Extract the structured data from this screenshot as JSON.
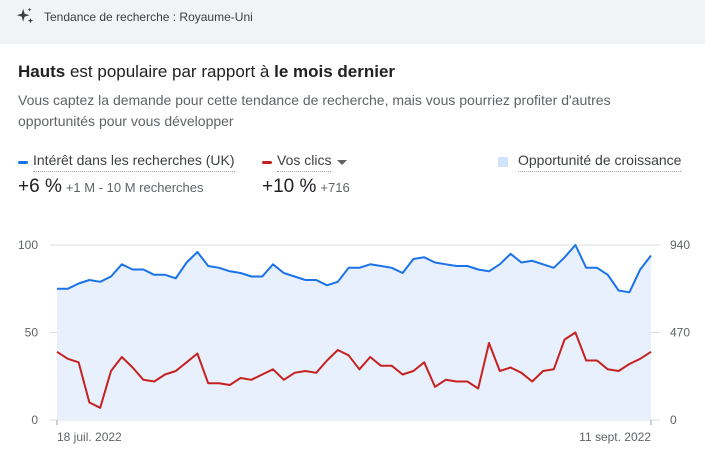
{
  "header": {
    "title": "Tendance de recherche : Royaume-Uni",
    "icon": "sparkle-icon"
  },
  "headline": {
    "subject": "Hauts",
    "middle": " est populaire par rapport à ",
    "period": "le mois dernier"
  },
  "description": "Vous captez la demande pour cette tendance de recherche, mais vous pourriez profiter d'autres opportunités pour vous développer",
  "legend": {
    "interest": {
      "label": "Intérêt dans les recherches (UK)",
      "color": "#1a73e8",
      "value": "+6 %",
      "detail": "+1 M - 10 M recherches"
    },
    "clicks": {
      "label": "Vos clics",
      "color": "#c5221f",
      "value": "+10 %",
      "detail": "+716"
    },
    "opportunity": {
      "label": "Opportunité de croissance",
      "color": "#d2e3fc"
    }
  },
  "chart_data": {
    "type": "line",
    "x_start_label": "18 juil. 2022",
    "x_end_label": "11 sept. 2022",
    "left_axis": {
      "ticks": [
        "100",
        "50",
        "0"
      ],
      "ylim": [
        0,
        100
      ]
    },
    "right_axis": {
      "ticks": [
        "940",
        "470",
        "0"
      ],
      "ylim": [
        0,
        940
      ]
    },
    "series": [
      {
        "name": "Intérêt dans les recherches (UK)",
        "axis": "left",
        "color": "#1a73e8",
        "values": [
          75,
          75,
          78,
          80,
          79,
          82,
          89,
          86,
          86,
          83,
          83,
          81,
          90,
          96,
          88,
          87,
          85,
          84,
          82,
          82,
          89,
          84,
          82,
          80,
          80,
          77,
          79,
          87,
          87,
          89,
          88,
          87,
          84,
          92,
          93,
          90,
          89,
          88,
          88,
          86,
          85,
          89,
          95,
          90,
          91,
          89,
          87,
          93,
          100,
          87,
          87,
          83,
          74,
          73,
          86,
          94
        ]
      },
      {
        "name": "Vos clics",
        "axis": "left",
        "color": "#c5221f",
        "values": [
          39,
          35,
          33,
          10,
          7,
          28,
          36,
          30,
          23,
          22,
          26,
          28,
          33,
          38,
          21,
          21,
          20,
          24,
          23,
          26,
          29,
          23,
          27,
          28,
          27,
          34,
          40,
          37,
          29,
          36,
          31,
          31,
          26,
          28,
          33,
          19,
          23,
          22,
          22,
          18,
          44,
          28,
          30,
          27,
          22,
          28,
          29,
          46,
          50,
          34,
          34,
          29,
          28,
          32,
          35,
          39
        ]
      }
    ]
  }
}
